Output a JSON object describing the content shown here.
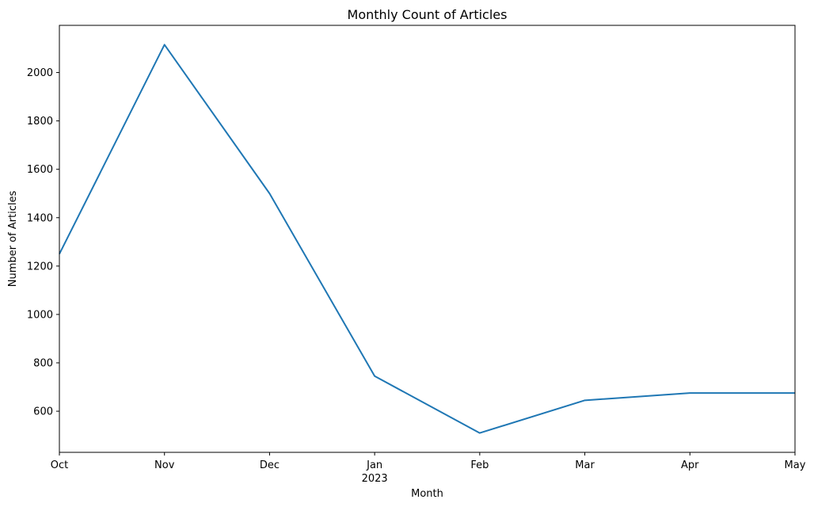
{
  "chart_data": {
    "type": "line",
    "title": "Monthly Count of Articles",
    "xlabel": "Month",
    "ylabel": "Number of Articles",
    "categories": [
      "Oct",
      "Nov",
      "Dec",
      "Jan",
      "Feb",
      "Mar",
      "Apr",
      "May"
    ],
    "year_label": "2023",
    "series": [
      {
        "values": [
          1250,
          2115,
          1500,
          745,
          510,
          645,
          675,
          675
        ],
        "color": "#1f77b4"
      }
    ],
    "ylim": [
      430,
      2195
    ],
    "yticks": [
      600,
      800,
      1000,
      1200,
      1400,
      1600,
      1800,
      2000
    ],
    "grid": false,
    "legend": "none"
  }
}
